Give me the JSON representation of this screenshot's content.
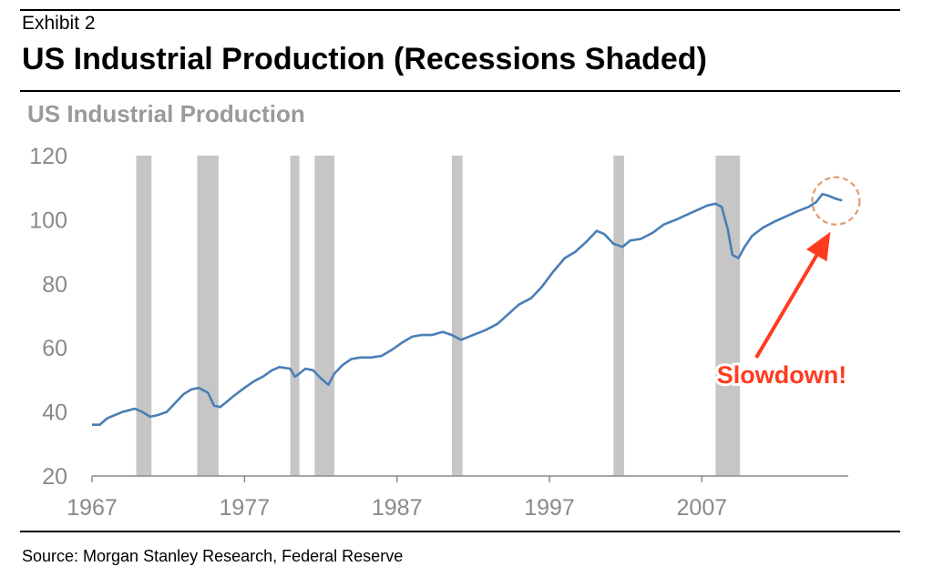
{
  "header": {
    "exhibit": "Exhibit 2",
    "title": "US Industrial Production (Recessions Shaded)"
  },
  "footer": {
    "source": "Source: Morgan Stanley Research, Federal Reserve"
  },
  "colors": {
    "line": "#4a7eb5",
    "recession": "#c6c6c6",
    "axis_text": "#8a8a8a",
    "annotation": "#ff3b1f",
    "circle": "#e29a6b"
  },
  "chart_data": {
    "type": "line",
    "title": "US Industrial Production",
    "xlabel": "",
    "ylabel": "",
    "xlim": [
      1967,
      2016.6
    ],
    "ylim": [
      20,
      120
    ],
    "yticks": [
      20,
      40,
      60,
      80,
      100,
      120
    ],
    "xticks": [
      1967,
      1977,
      1987,
      1997,
      2007
    ],
    "grid": false,
    "legend": "none",
    "series": [
      {
        "x": [
          1967.0,
          1967.5,
          1968.0,
          1969.0,
          1969.8,
          1970.3,
          1970.8,
          1971.3,
          1971.9,
          1972.5,
          1973.0,
          1973.5,
          1974.0,
          1974.6,
          1975.0,
          1975.4,
          1975.8,
          1976.3,
          1977.0,
          1977.6,
          1978.2,
          1978.8,
          1979.3,
          1980.0,
          1980.3,
          1980.6,
          1981.0,
          1981.5,
          1982.0,
          1982.5,
          1982.9,
          1983.4,
          1984.0,
          1984.6,
          1985.3,
          1986.0,
          1986.7,
          1987.3,
          1988.0,
          1988.6,
          1989.3,
          1990.0,
          1990.6,
          1991.2,
          1992.0,
          1992.8,
          1993.6,
          1994.3,
          1995.0,
          1995.8,
          1996.5,
          1997.2,
          1998.0,
          1998.7,
          1999.4,
          2000.1,
          2000.6,
          2001.2,
          2001.8,
          2002.3,
          2003.0,
          2003.8,
          2004.5,
          2005.3,
          2006.0,
          2006.7,
          2007.4,
          2007.9,
          2008.3,
          2008.7,
          2009.0,
          2009.4,
          2009.8,
          2010.3,
          2011.0,
          2011.8,
          2012.5,
          2013.2,
          2014.0,
          2014.5,
          2014.9,
          2015.3,
          2015.8,
          2016.2
        ],
        "values": [
          36,
          36,
          38,
          40,
          41,
          40,
          38.5,
          39,
          40,
          43,
          45.5,
          47,
          47.5,
          46,
          42,
          41.5,
          43,
          45,
          47.5,
          49.5,
          51,
          53,
          54,
          53.5,
          51,
          52,
          53.5,
          53,
          50.5,
          48.5,
          52,
          54.5,
          56.5,
          57,
          57,
          57.5,
          59.5,
          61.5,
          63.5,
          64,
          64,
          65,
          64,
          62.5,
          64,
          65.5,
          67.5,
          70.5,
          73.5,
          75.5,
          79,
          83.5,
          88,
          90,
          93,
          96.5,
          95.5,
          92.5,
          91.5,
          93.5,
          94,
          96,
          98.5,
          100,
          101.5,
          103,
          104.5,
          105,
          104,
          97,
          89,
          88,
          91.5,
          95,
          97.5,
          99.5,
          101,
          102.5,
          104,
          105.5,
          108,
          107.5,
          106.5,
          106
        ]
      }
    ],
    "recessions": [
      [
        1969.9,
        1970.9
      ],
      [
        1973.9,
        1975.3
      ],
      [
        1980.0,
        1980.6
      ],
      [
        1981.6,
        1982.9
      ],
      [
        1990.6,
        1991.3
      ],
      [
        2001.2,
        2001.9
      ],
      [
        2007.9,
        2009.5
      ]
    ],
    "annotation": {
      "text": "Slowdown!"
    }
  }
}
